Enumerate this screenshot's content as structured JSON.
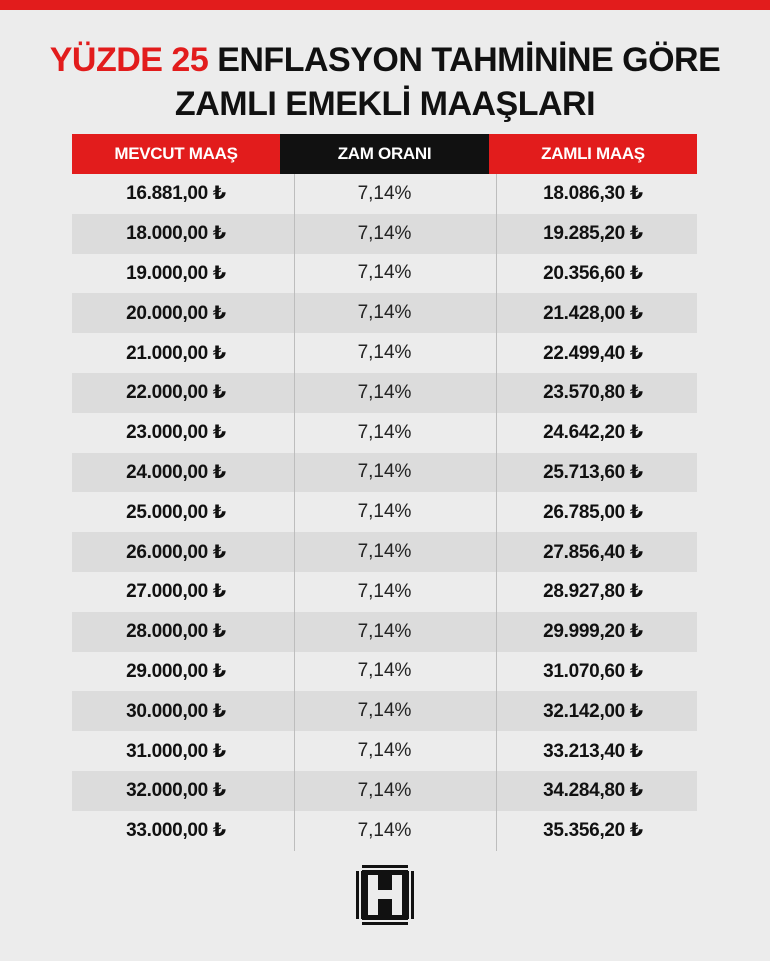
{
  "title": {
    "line1_accent": "YÜZDE 25",
    "line1_rest": " ENFLASYON TAHMİNİNE GÖRE",
    "line2": "ZAMLI EMEKLİ MAAŞLARI"
  },
  "colors": {
    "accent": "#e21c1c",
    "dark": "#111111",
    "background": "#ececec"
  },
  "table": {
    "headers": [
      "MEVCUT MAAŞ",
      "ZAM ORANI",
      "ZAMLI MAAŞ"
    ],
    "rows": [
      [
        "16.881,00 ₺",
        "7,14%",
        "18.086,30 ₺"
      ],
      [
        "18.000,00 ₺",
        "7,14%",
        "19.285,20 ₺"
      ],
      [
        "19.000,00 ₺",
        "7,14%",
        "20.356,60 ₺"
      ],
      [
        "20.000,00 ₺",
        "7,14%",
        "21.428,00 ₺"
      ],
      [
        "21.000,00 ₺",
        "7,14%",
        "22.499,40 ₺"
      ],
      [
        "22.000,00 ₺",
        "7,14%",
        "23.570,80 ₺"
      ],
      [
        "23.000,00 ₺",
        "7,14%",
        "24.642,20 ₺"
      ],
      [
        "24.000,00 ₺",
        "7,14%",
        "25.713,60 ₺"
      ],
      [
        "25.000,00 ₺",
        "7,14%",
        "26.785,00 ₺"
      ],
      [
        "26.000,00 ₺",
        "7,14%",
        "27.856,40 ₺"
      ],
      [
        "27.000,00 ₺",
        "7,14%",
        "28.927,80 ₺"
      ],
      [
        "28.000,00 ₺",
        "7,14%",
        "29.999,20 ₺"
      ],
      [
        "29.000,00 ₺",
        "7,14%",
        "31.070,60 ₺"
      ],
      [
        "30.000,00 ₺",
        "7,14%",
        "32.142,00 ₺"
      ],
      [
        "31.000,00 ₺",
        "7,14%",
        "33.213,40 ₺"
      ],
      [
        "32.000,00 ₺",
        "7,14%",
        "34.284,80 ₺"
      ],
      [
        "33.000,00 ₺",
        "7,14%",
        "35.356,20 ₺"
      ]
    ]
  },
  "logo": {
    "icon": "h-logo-icon"
  }
}
